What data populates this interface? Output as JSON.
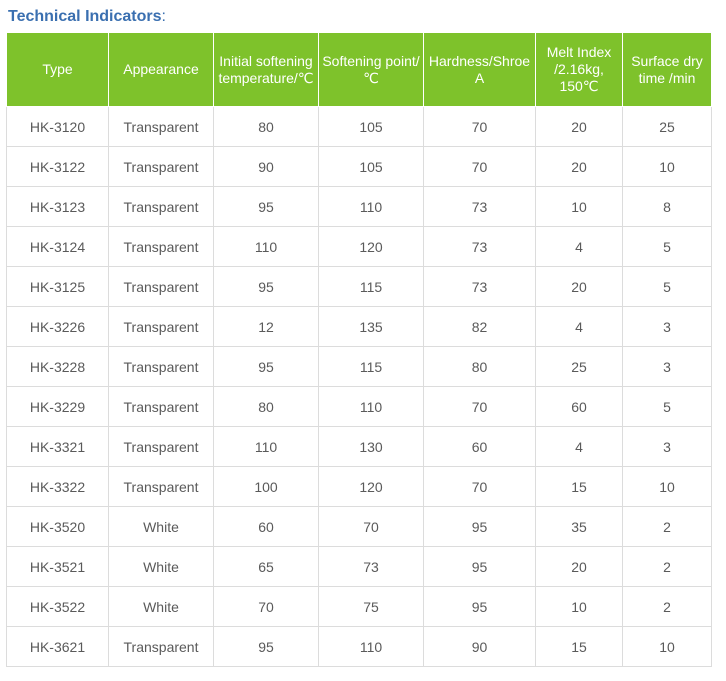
{
  "heading": {
    "title": "Technical Indicators",
    "colon": ":"
  },
  "colors": {
    "heading": "#3a6fb0",
    "header_bg": "#7ec22b",
    "header_text": "#ffffff",
    "cell_text": "#5a5a5a",
    "grid": "#dcdcdc"
  },
  "table": {
    "headers": [
      "Type",
      "Appearance",
      "Initial softening temperature/℃",
      "Softening point/℃",
      "Hardness/Shroe A",
      "Melt Index /2.16kg, 150℃",
      "Surface dry time /min"
    ],
    "rows": [
      [
        "HK-3120",
        "Transparent",
        "80",
        "105",
        "70",
        "20",
        "25"
      ],
      [
        "HK-3122",
        "Transparent",
        "90",
        "105",
        "70",
        "20",
        "10"
      ],
      [
        "HK-3123",
        "Transparent",
        "95",
        "110",
        "73",
        "10",
        "8"
      ],
      [
        "HK-3124",
        "Transparent",
        "110",
        "120",
        "73",
        "4",
        "5"
      ],
      [
        "HK-3125",
        "Transparent",
        "95",
        "115",
        "73",
        "20",
        "5"
      ],
      [
        "HK-3226",
        "Transparent",
        "12",
        "135",
        "82",
        "4",
        "3"
      ],
      [
        "HK-3228",
        "Transparent",
        "95",
        "115",
        "80",
        "25",
        "3"
      ],
      [
        "HK-3229",
        "Transparent",
        "80",
        "110",
        "70",
        "60",
        "5"
      ],
      [
        "HK-3321",
        "Transparent",
        "110",
        "130",
        "60",
        "4",
        "3"
      ],
      [
        "HK-3322",
        "Transparent",
        "100",
        "120",
        "70",
        "15",
        "10"
      ],
      [
        "HK-3520",
        "White",
        "60",
        "70",
        "95",
        "35",
        "2"
      ],
      [
        "HK-3521",
        "White",
        "65",
        "73",
        "95",
        "20",
        "2"
      ],
      [
        "HK-3522",
        "White",
        "70",
        "75",
        "95",
        "10",
        "2"
      ],
      [
        "HK-3621",
        "Transparent",
        "95",
        "110",
        "90",
        "15",
        "10"
      ]
    ]
  }
}
